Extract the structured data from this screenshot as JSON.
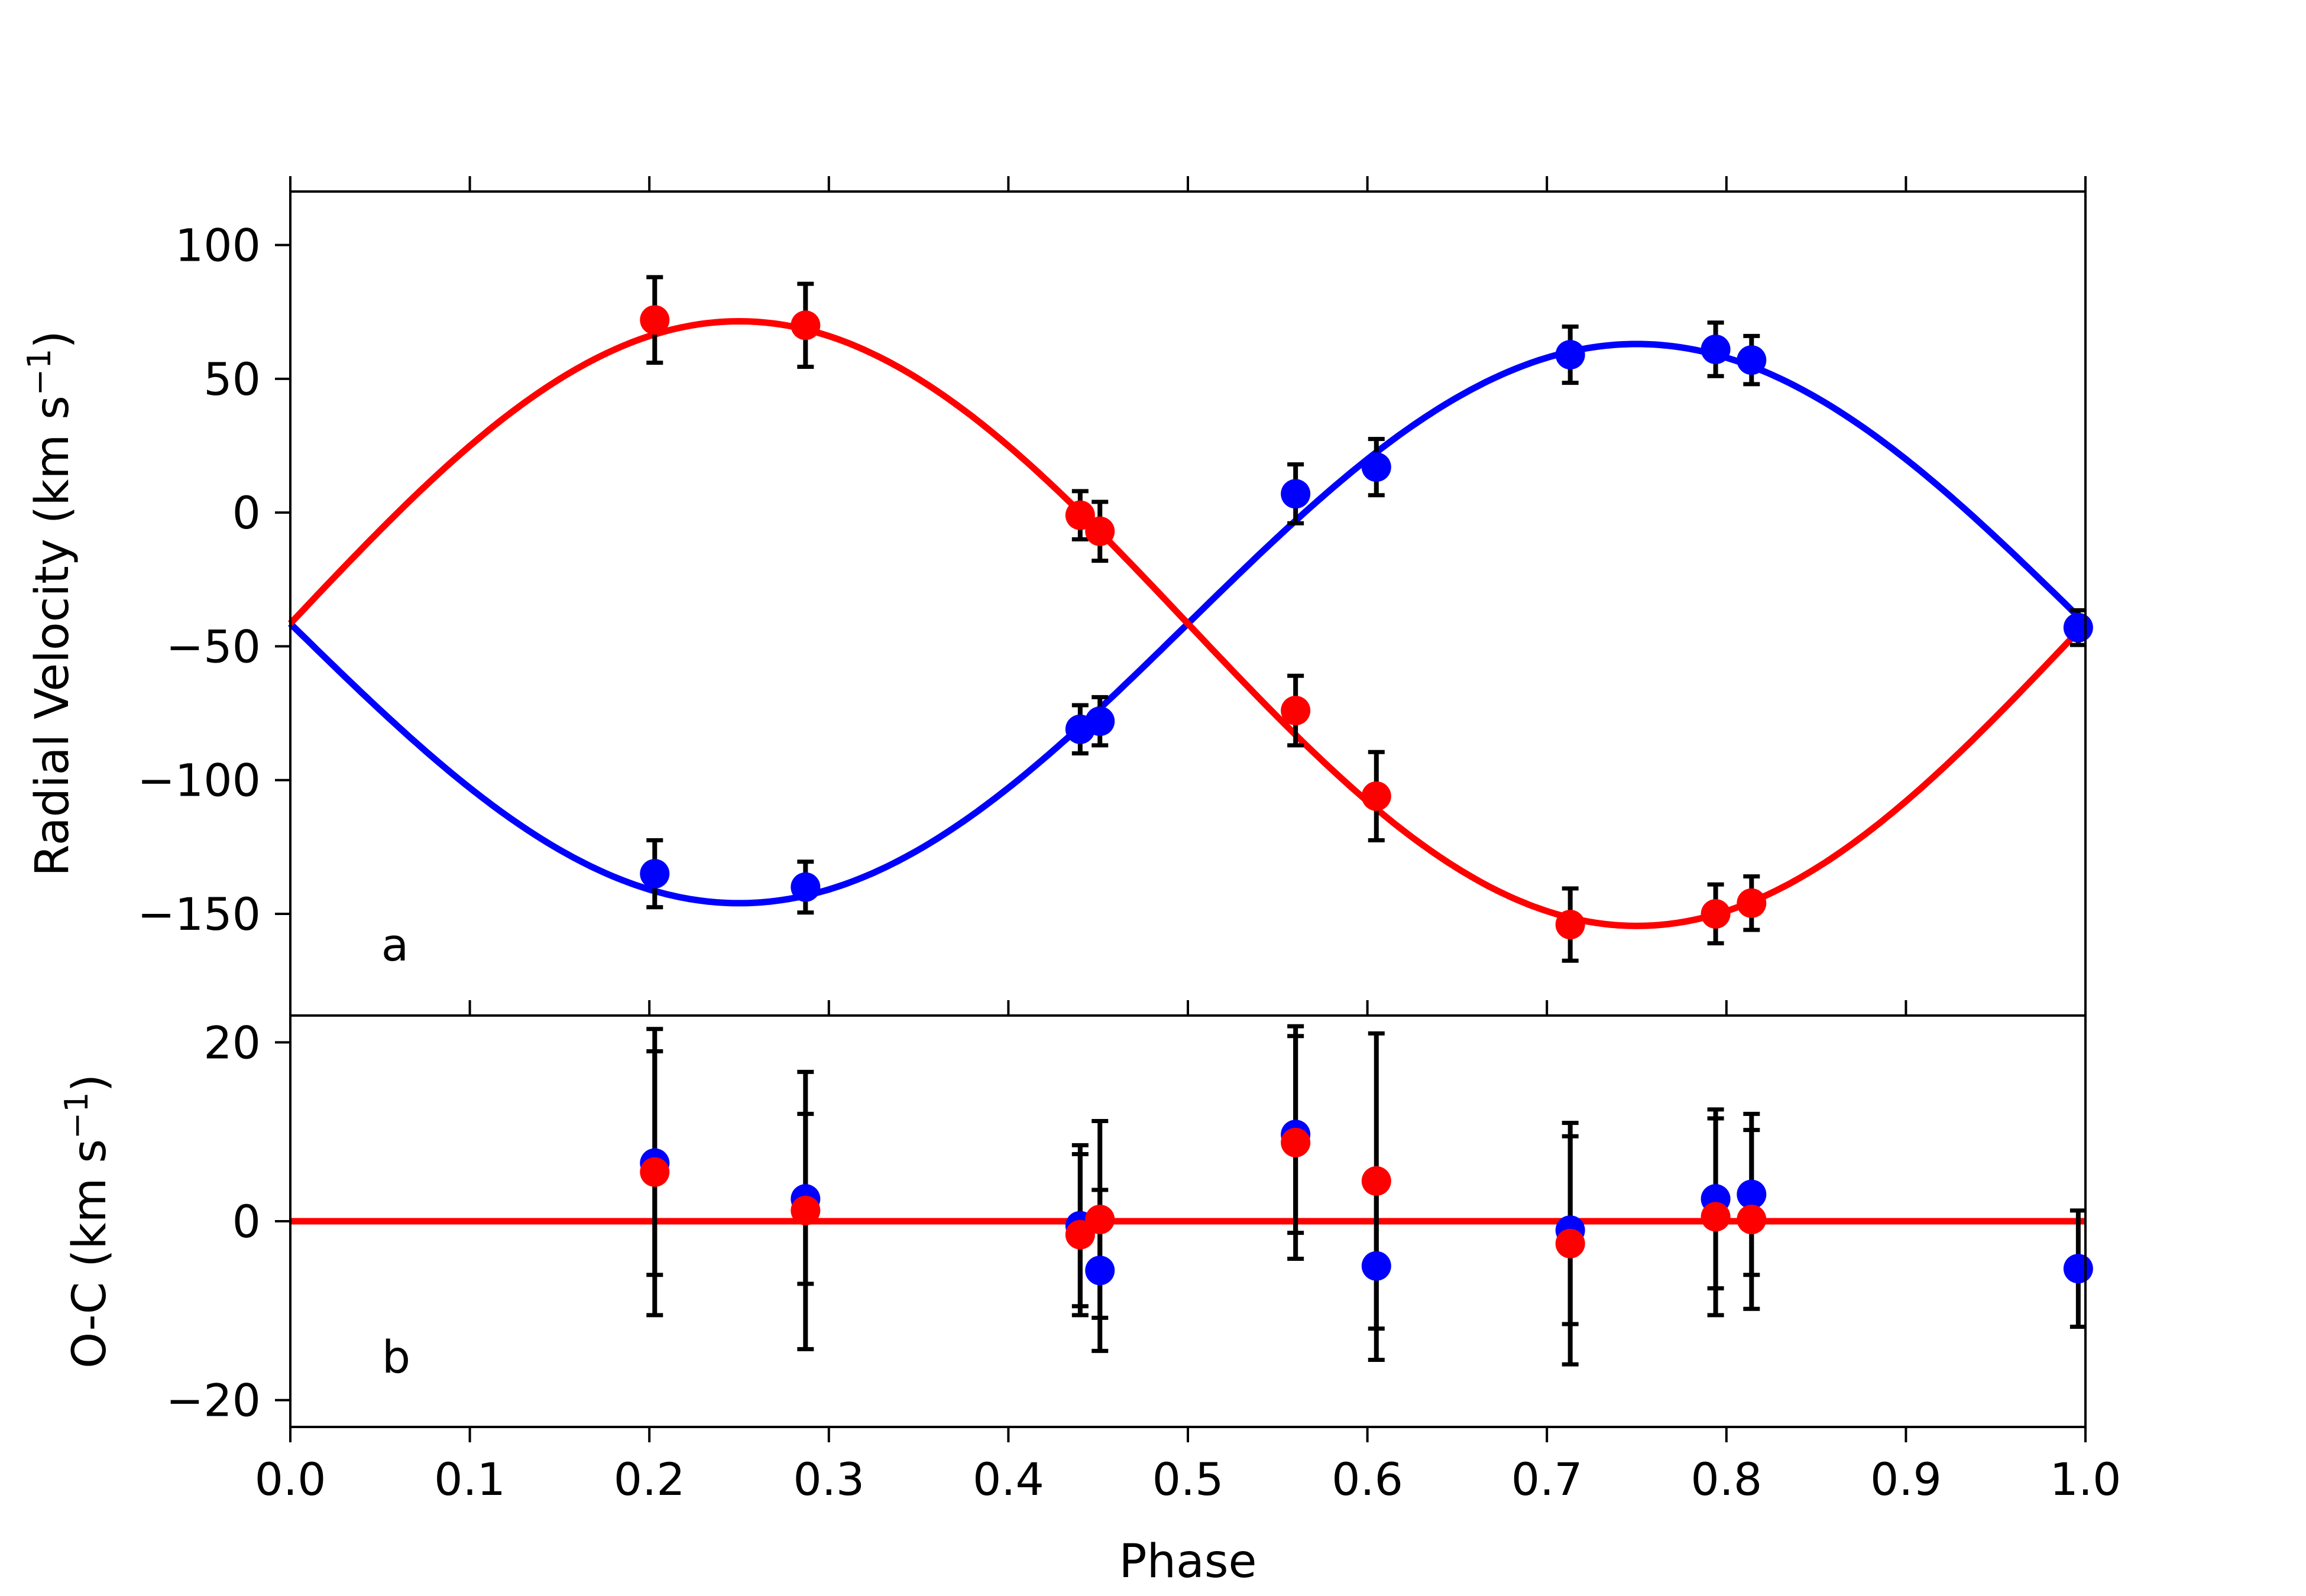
{
  "chart_data": [
    {
      "type": "scatter",
      "panel_label": "a",
      "xlabel": "Phase",
      "ylabel": "Radial Velocity (km s",
      "ylabel_unit_exponent": "−1",
      "ylabel_close": ")",
      "xlim": [
        0.0,
        1.0
      ],
      "ylim": [
        -188,
        120
      ],
      "yticks": [
        100,
        50,
        0,
        -50,
        -100,
        -150
      ],
      "ytick_labels": [
        "100",
        "50",
        "0",
        "−50",
        "−100",
        "−150"
      ],
      "grid": false,
      "series": [
        {
          "color": "#0000ff",
          "model_curve": {
            "gamma": -41.5,
            "amplitude": 104.5,
            "form": "gamma - K*sin(2*pi*phase)"
          },
          "points": [
            {
              "x": 0.203,
              "y": -135,
              "err": 12.5
            },
            {
              "x": 0.287,
              "y": -140,
              "err": 9.5
            },
            {
              "x": 0.44,
              "y": -81,
              "err": 9
            },
            {
              "x": 0.451,
              "y": -78,
              "err": 9
            },
            {
              "x": 0.56,
              "y": 7,
              "err": 11
            },
            {
              "x": 0.605,
              "y": 17,
              "err": 10.5
            },
            {
              "x": 0.713,
              "y": 59,
              "err": 10.5
            },
            {
              "x": 0.794,
              "y": 61,
              "err": 10
            },
            {
              "x": 0.814,
              "y": 57,
              "err": 9
            },
            {
              "x": 0.996,
              "y": -43,
              "err": 6.5
            }
          ]
        },
        {
          "color": "#ff0000",
          "model_curve": {
            "gamma": -41.5,
            "amplitude": 113,
            "form": "gamma + K*sin(2*pi*phase)"
          },
          "points": [
            {
              "x": 0.203,
              "y": 72,
              "err": 16
            },
            {
              "x": 0.287,
              "y": 70,
              "err": 15.5
            },
            {
              "x": 0.44,
              "y": -1,
              "err": 9
            },
            {
              "x": 0.451,
              "y": -7,
              "err": 11
            },
            {
              "x": 0.56,
              "y": -74,
              "err": 13
            },
            {
              "x": 0.605,
              "y": -106,
              "err": 16.5
            },
            {
              "x": 0.713,
              "y": -154,
              "err": 13.5
            },
            {
              "x": 0.794,
              "y": -150,
              "err": 11
            },
            {
              "x": 0.814,
              "y": -146,
              "err": 10
            }
          ]
        }
      ]
    },
    {
      "type": "scatter",
      "panel_label": "b",
      "xlabel": "Phase",
      "ylabel": "O-C (km s",
      "ylabel_unit_exponent": "−1",
      "ylabel_close": ")",
      "xlim": [
        0.0,
        1.0
      ],
      "ylim": [
        -23,
        23
      ],
      "xticks": [
        0.0,
        0.1,
        0.2,
        0.3,
        0.4,
        0.5,
        0.6,
        0.7,
        0.8,
        0.9,
        1.0
      ],
      "xtick_labels": [
        "0.0",
        "0.1",
        "0.2",
        "0.3",
        "0.4",
        "0.5",
        "0.6",
        "0.7",
        "0.8",
        "0.9",
        "1.0"
      ],
      "yticks": [
        20,
        0,
        -20
      ],
      "ytick_labels": [
        "20",
        "0",
        "−20"
      ],
      "zero_line": {
        "y": 0,
        "color": "#ff0000"
      },
      "grid": false,
      "series": [
        {
          "color": "#0000ff",
          "points": [
            {
              "x": 0.203,
              "y": 6.5,
              "err": 12.5
            },
            {
              "x": 0.287,
              "y": 2.5,
              "err": 9.5
            },
            {
              "x": 0.44,
              "y": -0.5,
              "err": 9
            },
            {
              "x": 0.451,
              "y": -5.5,
              "err": 9
            },
            {
              "x": 0.56,
              "y": 9.7,
              "err": 11
            },
            {
              "x": 0.605,
              "y": -5,
              "err": 10.5
            },
            {
              "x": 0.713,
              "y": -1,
              "err": 10.5
            },
            {
              "x": 0.794,
              "y": 2.5,
              "err": 10
            },
            {
              "x": 0.814,
              "y": 3,
              "err": 9
            },
            {
              "x": 0.996,
              "y": -5.3,
              "err": 6.5
            }
          ]
        },
        {
          "color": "#ff0000",
          "points": [
            {
              "x": 0.203,
              "y": 5.5,
              "err": 16
            },
            {
              "x": 0.287,
              "y": 1.2,
              "err": 15.5
            },
            {
              "x": 0.44,
              "y": -1.5,
              "err": 9
            },
            {
              "x": 0.451,
              "y": 0.2,
              "err": 11
            },
            {
              "x": 0.56,
              "y": 8.8,
              "err": 13
            },
            {
              "x": 0.605,
              "y": 4.5,
              "err": 16.5
            },
            {
              "x": 0.713,
              "y": -2.5,
              "err": 13.5
            },
            {
              "x": 0.794,
              "y": 0.5,
              "err": 11
            },
            {
              "x": 0.814,
              "y": 0.2,
              "err": 10
            }
          ]
        }
      ]
    }
  ]
}
